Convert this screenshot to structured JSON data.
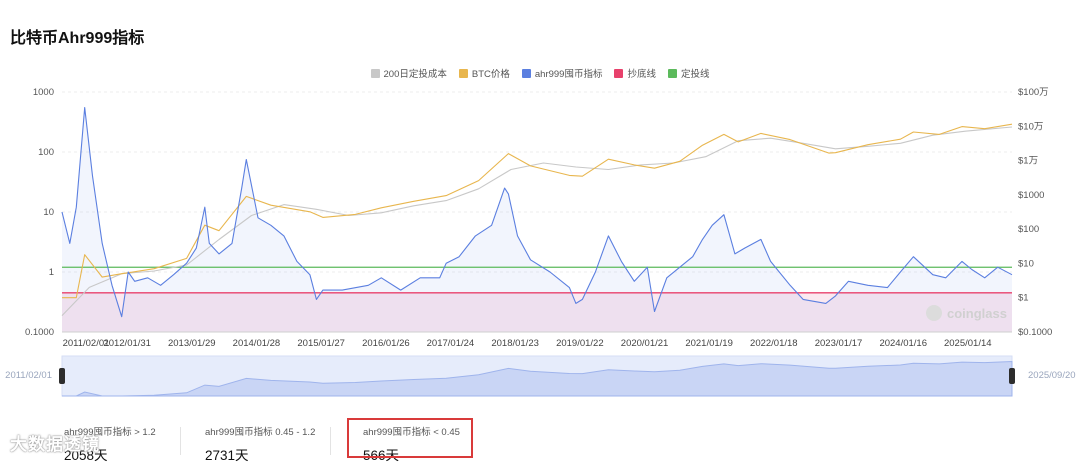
{
  "page": {
    "title": "比特币Ahr999指标"
  },
  "legend": [
    {
      "label": "200日定投成本",
      "color": "#c8c8c8"
    },
    {
      "label": "BTC价格",
      "color": "#e8b64e"
    },
    {
      "label": "ahr999囤币指标",
      "color": "#5b7fe0"
    },
    {
      "label": "抄底线",
      "color": "#e8416c"
    },
    {
      "label": "定投线",
      "color": "#5cba5c"
    }
  ],
  "chart_data": {
    "type": "line",
    "y_left": {
      "scale": "log",
      "range": [
        0.1,
        1000
      ],
      "ticks": [
        "1000",
        "100",
        "10",
        "1",
        "0.1000"
      ]
    },
    "y_right": {
      "scale": "log",
      "range": [
        0.1,
        1000000
      ],
      "ticks": [
        "$100万",
        "$10万",
        "$1万",
        "$1000",
        "$100",
        "$10",
        "$1",
        "$0.1000"
      ]
    },
    "x_range": [
      "2011/02/01",
      "2025/09/20"
    ],
    "x_ticks": [
      "2011/02/01",
      "2012/01/31",
      "2013/01/29",
      "2014/01/28",
      "2015/01/27",
      "2016/01/26",
      "2017/01/24",
      "2018/01/23",
      "2019/01/22",
      "2020/01/21",
      "2021/01/19",
      "2022/01/18",
      "2023/01/17",
      "2024/01/16",
      "2025/01/14"
    ],
    "reference_lines": [
      {
        "name": "定投线",
        "value": 1.2,
        "color": "#5cba5c"
      },
      {
        "name": "抄底线",
        "value": 0.45,
        "color": "#e8416c"
      }
    ],
    "series": [
      {
        "name": "ahr999囤币指标",
        "axis": "left",
        "color": "#5b7fe0",
        "x": [
          2011.08,
          2011.2,
          2011.3,
          2011.43,
          2011.55,
          2011.7,
          2011.85,
          2012.0,
          2012.1,
          2012.2,
          2012.4,
          2012.6,
          2012.8,
          2013.0,
          2013.15,
          2013.28,
          2013.35,
          2013.5,
          2013.7,
          2013.85,
          2013.92,
          2014.1,
          2014.3,
          2014.5,
          2014.7,
          2014.9,
          2015.0,
          2015.1,
          2015.4,
          2015.8,
          2016.0,
          2016.3,
          2016.6,
          2016.9,
          2017.0,
          2017.2,
          2017.45,
          2017.7,
          2017.9,
          2017.96,
          2018.1,
          2018.3,
          2018.6,
          2018.9,
          2019.0,
          2019.1,
          2019.3,
          2019.5,
          2019.7,
          2019.9,
          2020.1,
          2020.21,
          2020.4,
          2020.6,
          2020.8,
          2020.95,
          2021.1,
          2021.28,
          2021.45,
          2021.6,
          2021.85,
          2022.0,
          2022.3,
          2022.5,
          2022.85,
          2023.0,
          2023.2,
          2023.5,
          2023.8,
          2024.0,
          2024.2,
          2024.5,
          2024.7,
          2024.95,
          2025.1,
          2025.3,
          2025.5,
          2025.72
        ],
        "values": [
          10,
          3,
          12,
          550,
          40,
          3,
          0.6,
          0.18,
          1.0,
          0.7,
          0.8,
          0.6,
          0.9,
          1.4,
          2.5,
          12,
          3,
          2.0,
          3,
          25,
          75,
          8,
          6,
          4,
          1.5,
          0.9,
          0.35,
          0.5,
          0.5,
          0.6,
          0.8,
          0.5,
          0.8,
          0.8,
          1.4,
          1.8,
          4,
          6,
          25,
          20,
          4,
          1.6,
          1.0,
          0.55,
          0.3,
          0.35,
          1.0,
          4,
          1.5,
          0.7,
          1.2,
          0.22,
          0.8,
          1.2,
          1.8,
          3.5,
          6,
          9,
          2,
          2.5,
          3.5,
          1.5,
          0.6,
          0.35,
          0.3,
          0.4,
          0.7,
          0.6,
          0.55,
          1.0,
          1.8,
          0.9,
          0.8,
          1.5,
          1.1,
          0.8,
          1.2,
          0.9
        ]
      },
      {
        "name": "BTC价格",
        "axis": "right",
        "color": "#e8b64e",
        "x": [
          2011.08,
          2011.3,
          2011.43,
          2011.7,
          2012.0,
          2012.5,
          2013.0,
          2013.28,
          2013.5,
          2013.92,
          2014.3,
          2014.9,
          2015.1,
          2015.6,
          2016.0,
          2016.5,
          2017.0,
          2017.5,
          2017.96,
          2018.3,
          2018.9,
          2019.1,
          2019.5,
          2019.9,
          2020.21,
          2020.6,
          2020.95,
          2021.28,
          2021.5,
          2021.85,
          2022.3,
          2022.9,
          2023.0,
          2023.5,
          2024.0,
          2024.2,
          2024.6,
          2024.95,
          2025.3,
          2025.72
        ],
        "values": [
          1,
          1,
          18,
          4,
          5,
          7,
          14,
          130,
          90,
          900,
          500,
          320,
          220,
          270,
          420,
          650,
          950,
          2600,
          16000,
          7000,
          3700,
          3500,
          11000,
          7500,
          6000,
          9500,
          28000,
          58000,
          35000,
          62000,
          41000,
          16500,
          17000,
          29000,
          42000,
          68000,
          58000,
          98000,
          85000,
          115000
        ]
      },
      {
        "name": "200日定投成本",
        "axis": "right",
        "color": "#c8c8c8",
        "x": [
          2011.08,
          2011.5,
          2012.0,
          2012.5,
          2013.0,
          2013.5,
          2014.0,
          2014.5,
          2015.0,
          2015.5,
          2016.0,
          2016.5,
          2017.0,
          2017.5,
          2018.0,
          2018.5,
          2019.0,
          2019.5,
          2020.0,
          2020.5,
          2021.0,
          2021.5,
          2022.0,
          2022.5,
          2023.0,
          2023.5,
          2024.0,
          2024.5,
          2025.0,
          2025.72
        ],
        "values": [
          0.3,
          2,
          5,
          6,
          9,
          50,
          250,
          520,
          380,
          250,
          300,
          480,
          680,
          1500,
          5500,
          8500,
          6500,
          5500,
          7500,
          8500,
          13000,
          38000,
          45000,
          32000,
          22000,
          26000,
          32000,
          55000,
          72000,
          95000
        ]
      }
    ]
  },
  "axis_labels": {
    "left_ticks": [
      "1000",
      "100",
      "10",
      "1",
      "0.1000"
    ],
    "right_ticks": [
      "$100万",
      "$10万",
      "$1万",
      "$1000",
      "$100",
      "$10",
      "$1",
      "$0.1000"
    ],
    "x_ticks": [
      "2011/02/01",
      "2012/01/31",
      "2013/01/29",
      "2014/01/28",
      "2015/01/27",
      "2016/01/26",
      "2017/01/24",
      "2018/01/23",
      "2019/01/22",
      "2020/01/21",
      "2021/01/19",
      "2022/01/18",
      "2023/01/17",
      "2024/01/16",
      "2025/01/14"
    ]
  },
  "navigator": {
    "start_label": "2011/02/01",
    "end_label": "2025/09/20"
  },
  "brand": {
    "name": "coinglass"
  },
  "stats": [
    {
      "label": "ahr999囤币指标 > 1.2",
      "value": "2058天"
    },
    {
      "label": "ahr999囤币指标 0.45 - 1.2",
      "value": "2731天"
    },
    {
      "label": "ahr999囤币指标 < 0.45",
      "value": "566天"
    }
  ],
  "watermark": {
    "text": "大数据透镜"
  },
  "colors": {
    "accent": "#5b7fe0",
    "highlight_border": "#d93a3a",
    "buy_zone_fill": "#fbe9f0"
  }
}
